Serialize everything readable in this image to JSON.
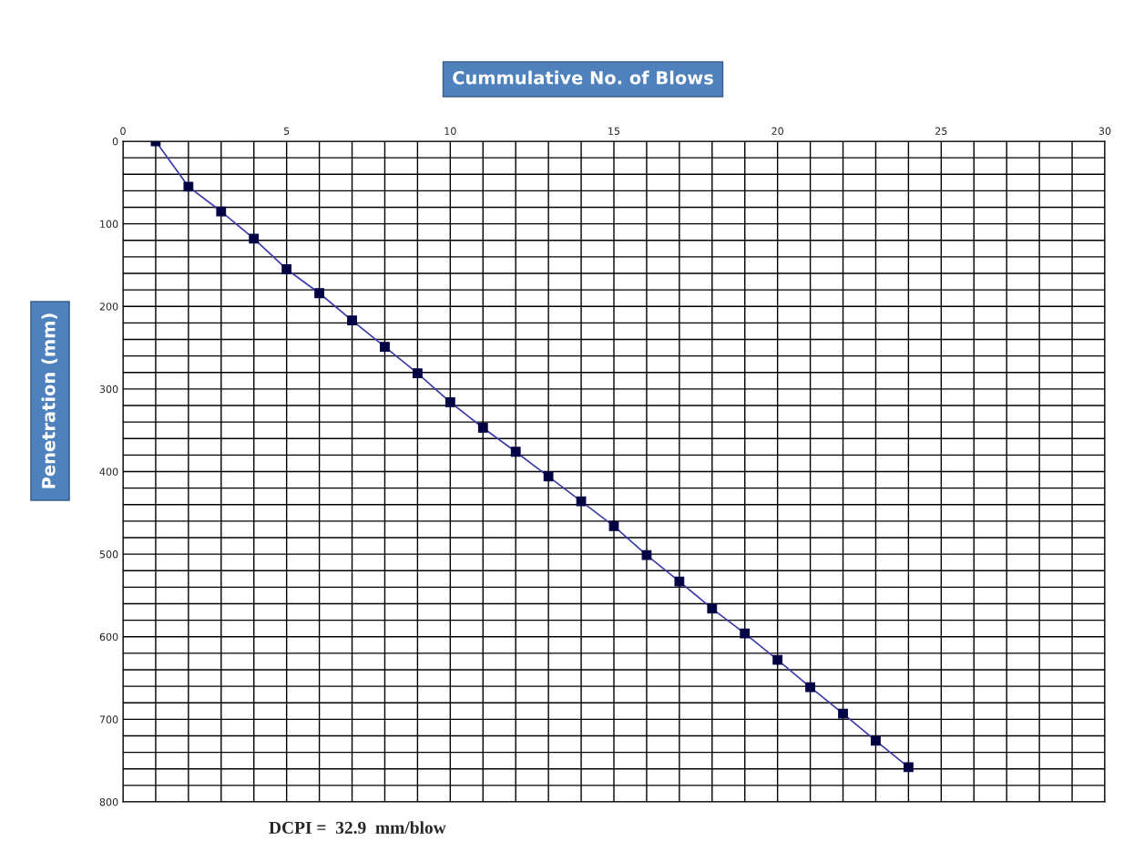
{
  "chart_data": {
    "type": "line",
    "title": "Cummulative No. of Blows",
    "ylabel": "Penetration (mm)",
    "annotations": [
      "DCPI =  32.9  mm/blow"
    ],
    "x": [
      1,
      2,
      3,
      4,
      5,
      6,
      7,
      8,
      9,
      10,
      11,
      12,
      13,
      14,
      15,
      16,
      17,
      18,
      19,
      20,
      21,
      22,
      23,
      24
    ],
    "series": [
      {
        "color": "#3a3aa8",
        "values": [
          0,
          55,
          85,
          118,
          155,
          184,
          217,
          249,
          281,
          316,
          347,
          376,
          406,
          436,
          466,
          501,
          533,
          566,
          596,
          628,
          661,
          693,
          726,
          758
        ]
      }
    ],
    "marker": "square",
    "line_style": "solid",
    "grid": true,
    "legend": false,
    "xlim": [
      0,
      30
    ],
    "ylim": [
      800,
      0
    ],
    "xticks": [
      0,
      {
        "value": 1,
        "label": null
      },
      {
        "value": 2,
        "label": null
      },
      {
        "value": 3,
        "label": null
      },
      {
        "value": 4,
        "label": null
      },
      5,
      {
        "value": 6,
        "label": null
      },
      {
        "value": 7,
        "label": null
      },
      {
        "value": 8,
        "label": null
      },
      {
        "value": 9,
        "label": null
      },
      10,
      {
        "value": 11,
        "label": null
      },
      {
        "value": 12,
        "label": null
      },
      {
        "value": 13,
        "label": null
      },
      {
        "value": 14,
        "label": null
      },
      15,
      {
        "value": 16,
        "label": null
      },
      {
        "value": 17,
        "label": null
      },
      {
        "value": 18,
        "label": null
      },
      {
        "value": 19,
        "label": null
      },
      20,
      {
        "value": 21,
        "label": null
      },
      {
        "value": 22,
        "label": null
      },
      {
        "value": 23,
        "label": null
      },
      {
        "value": 24,
        "label": null
      },
      25,
      {
        "value": 26,
        "label": null
      },
      {
        "value": 27,
        "label": null
      },
      {
        "value": 28,
        "label": null
      },
      {
        "value": 29,
        "label": null
      },
      30
    ],
    "yticks": [
      0,
      {
        "value": 20,
        "label": null
      },
      {
        "value": 40,
        "label": null
      },
      {
        "value": 60,
        "label": null
      },
      {
        "value": 80,
        "label": null
      },
      100,
      {
        "value": 120,
        "label": null
      },
      {
        "value": 140,
        "label": null
      },
      {
        "value": 160,
        "label": null
      },
      {
        "value": 180,
        "label": null
      },
      200,
      {
        "value": 220,
        "label": null
      },
      {
        "value": 240,
        "label": null
      },
      {
        "value": 260,
        "label": null
      },
      {
        "value": 280,
        "label": null
      },
      300,
      {
        "value": 320,
        "label": null
      },
      {
        "value": 340,
        "label": null
      },
      {
        "value": 360,
        "label": null
      },
      {
        "value": 380,
        "label": null
      },
      400,
      {
        "value": 420,
        "label": null
      },
      {
        "value": 440,
        "label": null
      },
      {
        "value": 460,
        "label": null
      },
      {
        "value": 480,
        "label": null
      },
      500,
      {
        "value": 520,
        "label": null
      },
      {
        "value": 540,
        "label": null
      },
      {
        "value": 560,
        "label": null
      },
      {
        "value": 580,
        "label": null
      },
      600,
      {
        "value": 620,
        "label": null
      },
      {
        "value": 640,
        "label": null
      },
      {
        "value": 660,
        "label": null
      },
      {
        "value": 680,
        "label": null
      },
      700,
      {
        "value": 720,
        "label": null
      },
      {
        "value": 740,
        "label": null
      },
      {
        "value": 760,
        "label": null
      },
      {
        "value": 780,
        "label": null
      },
      800
    ]
  }
}
